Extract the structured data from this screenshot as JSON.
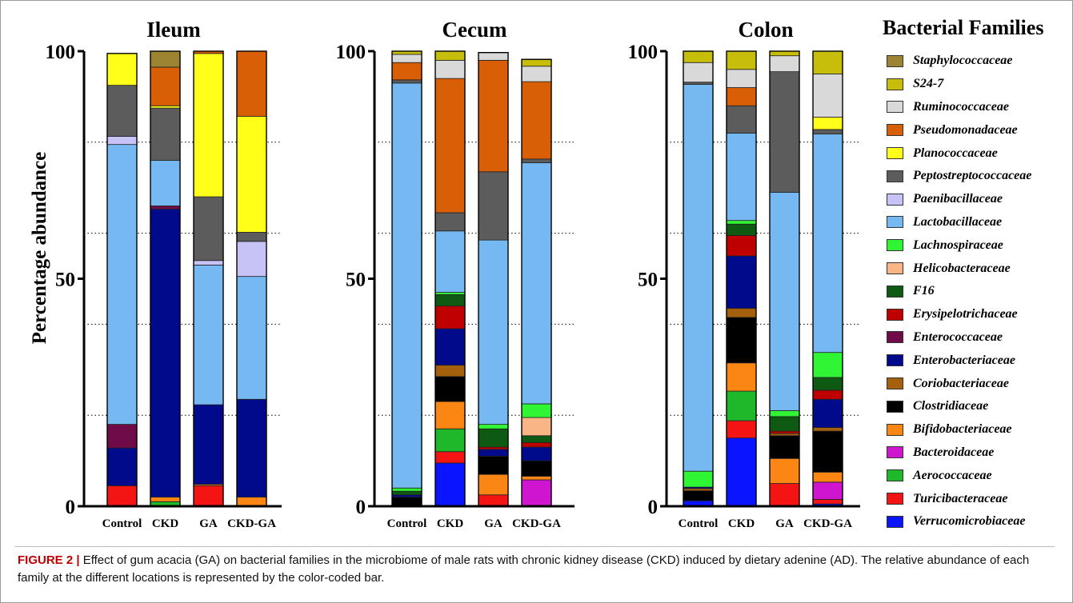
{
  "legend": {
    "title": "Bacterial Families",
    "families": [
      {
        "name": "Staphylococcaceae",
        "color": "#9C8433"
      },
      {
        "name": "S24-7",
        "color": "#C7BE0B"
      },
      {
        "name": "Ruminococcaceae",
        "color": "#D9D9D9"
      },
      {
        "name": "Pseudomonadaceae",
        "color": "#D95F07"
      },
      {
        "name": "Planococcaceae",
        "color": "#FFFF1A"
      },
      {
        "name": "Peptostreptococcaceae",
        "color": "#5C5C5C"
      },
      {
        "name": "Paenibacillaceae",
        "color": "#C8C3F6"
      },
      {
        "name": "Lactobacillaceae",
        "color": "#76B9F2"
      },
      {
        "name": "Lachnospiraceae",
        "color": "#30F534"
      },
      {
        "name": "Helicobacteraceae",
        "color": "#F9B585"
      },
      {
        "name": "F16",
        "color": "#0F5A12"
      },
      {
        "name": "Erysipelotrichaceae",
        "color": "#BF0000"
      },
      {
        "name": "Enterococcaceae",
        "color": "#6E0B48"
      },
      {
        "name": "Enterobacteriaceae",
        "color": "#000A8A"
      },
      {
        "name": "Coriobacteriaceae",
        "color": "#A5600E"
      },
      {
        "name": "Clostridiaceae",
        "color": "#000000"
      },
      {
        "name": "Bifidobacteriaceae",
        "color": "#FB8614"
      },
      {
        "name": "Bacteroidaceae",
        "color": "#CF15CF"
      },
      {
        "name": "Aerococcaceae",
        "color": "#1FB82B"
      },
      {
        "name": "Turicibacteraceae",
        "color": "#F51414"
      },
      {
        "name": "Verrucomicrobiaceae",
        "color": "#0A14FF"
      }
    ]
  },
  "caption": {
    "label": "FIGURE 2 |",
    "text": "Effect of gum acacia (GA) on bacterial families in the microbiome of male rats with chronic kidney disease (CKD) induced by dietary adenine (AD). The relative abundance of each family at the different locations is represented by the color-coded bar."
  },
  "chart_data": [
    {
      "type": "bar",
      "stacked": true,
      "title": "Ileum",
      "ylabel": "Percentage abundance",
      "ylim": [
        0,
        100
      ],
      "yticks": [
        0,
        50,
        100
      ],
      "grid": "dotted horizontal at 20, 40, 60, 80",
      "categories": [
        "Control",
        "CKD",
        "GA",
        "CKD-GA"
      ],
      "series": [
        {
          "name": "Verrucomicrobiaceae",
          "values": [
            0,
            0,
            0,
            0
          ]
        },
        {
          "name": "Turicibacteraceae",
          "values": [
            4.5,
            0,
            4.5,
            0
          ]
        },
        {
          "name": "Aerococcaceae",
          "values": [
            0,
            1.0,
            0,
            0
          ]
        },
        {
          "name": "Bacteroidaceae",
          "values": [
            0,
            0,
            0,
            0
          ]
        },
        {
          "name": "Bifidobacteriaceae",
          "values": [
            0,
            1.0,
            0.3,
            2.0
          ]
        },
        {
          "name": "Clostridiaceae",
          "values": [
            0,
            0,
            0,
            0
          ]
        },
        {
          "name": "Coriobacteriaceae",
          "values": [
            0,
            0,
            0,
            0
          ]
        },
        {
          "name": "Enterobacteriaceae",
          "values": [
            8.3,
            63.3,
            17.5,
            21.5
          ]
        },
        {
          "name": "Enterococcaceae",
          "values": [
            5.2,
            0.7,
            0,
            0
          ]
        },
        {
          "name": "Erysipelotrichaceae",
          "values": [
            0,
            0,
            0,
            0
          ]
        },
        {
          "name": "F16",
          "values": [
            0,
            0,
            0,
            0
          ]
        },
        {
          "name": "Helicobacteraceae",
          "values": [
            0,
            0,
            0,
            0
          ]
        },
        {
          "name": "Lachnospiraceae",
          "values": [
            0,
            0,
            0,
            0
          ]
        },
        {
          "name": "Lactobacillaceae",
          "values": [
            61.5,
            10.0,
            30.7,
            27.0
          ]
        },
        {
          "name": "Paenibacillaceae",
          "values": [
            1.8,
            0,
            1.0,
            7.7
          ]
        },
        {
          "name": "Peptostreptococcaceae",
          "values": [
            11.2,
            11.5,
            14.0,
            2.0
          ]
        },
        {
          "name": "Planococcaceae",
          "values": [
            7.0,
            0.5,
            31.5,
            25.5
          ]
        },
        {
          "name": "Pseudomonadaceae",
          "values": [
            0,
            8.5,
            0.5,
            14.3
          ]
        },
        {
          "name": "Ruminococcaceae",
          "values": [
            0,
            0,
            0,
            0
          ]
        },
        {
          "name": "S24-7",
          "values": [
            0,
            0,
            0,
            0
          ]
        },
        {
          "name": "Staphylococcaceae",
          "values": [
            0,
            3.5,
            0,
            0
          ]
        }
      ]
    },
    {
      "type": "bar",
      "stacked": true,
      "title": "Cecum",
      "ylim": [
        0,
        100
      ],
      "yticks": [
        0,
        50,
        100
      ],
      "grid": "dotted horizontal at 20, 40, 60, 80",
      "categories": [
        "Control",
        "CKD",
        "GA",
        "CKD-GA"
      ],
      "series": [
        {
          "name": "Verrucomicrobiaceae",
          "values": [
            0,
            9.5,
            0,
            0
          ]
        },
        {
          "name": "Turicibacteraceae",
          "values": [
            0,
            2.5,
            2.5,
            0
          ]
        },
        {
          "name": "Aerococcaceae",
          "values": [
            0,
            5.0,
            0,
            0
          ]
        },
        {
          "name": "Bacteroidaceae",
          "values": [
            0,
            0,
            0,
            5.8
          ]
        },
        {
          "name": "Bifidobacteriaceae",
          "values": [
            0,
            6.0,
            4.5,
            0.8
          ]
        },
        {
          "name": "Clostridiaceae",
          "values": [
            2.0,
            5.5,
            4.0,
            3.4
          ]
        },
        {
          "name": "Coriobacteriaceae",
          "values": [
            0,
            2.5,
            0,
            0
          ]
        },
        {
          "name": "Enterobacteriaceae",
          "values": [
            0.5,
            8.0,
            1.5,
            3.0
          ]
        },
        {
          "name": "Enterococcaceae",
          "values": [
            0,
            0,
            0,
            0
          ]
        },
        {
          "name": "Erysipelotrichaceae",
          "values": [
            0,
            5.0,
            0.5,
            1.0
          ]
        },
        {
          "name": "F16",
          "values": [
            0.8,
            2.5,
            4.0,
            1.5
          ]
        },
        {
          "name": "Helicobacteraceae",
          "values": [
            0,
            0,
            0,
            4.0
          ]
        },
        {
          "name": "Lachnospiraceae",
          "values": [
            0.7,
            0.5,
            1.0,
            3.0
          ]
        },
        {
          "name": "Lactobacillaceae",
          "values": [
            89.0,
            13.5,
            40.5,
            53.0
          ]
        },
        {
          "name": "Paenibacillaceae",
          "values": [
            0,
            0,
            0,
            0
          ]
        },
        {
          "name": "Peptostreptococcaceae",
          "values": [
            0.7,
            4.0,
            15.0,
            0.8
          ]
        },
        {
          "name": "Planococcaceae",
          "values": [
            0,
            0,
            0,
            0
          ]
        },
        {
          "name": "Pseudomonadaceae",
          "values": [
            3.8,
            29.5,
            24.5,
            17.0
          ]
        },
        {
          "name": "Ruminococcaceae",
          "values": [
            1.8,
            4.0,
            1.7,
            3.4
          ]
        },
        {
          "name": "S24-7",
          "values": [
            0.7,
            2.0,
            0,
            1.5
          ]
        },
        {
          "name": "Staphylococcaceae",
          "values": [
            0,
            0,
            0,
            0
          ]
        }
      ]
    },
    {
      "type": "bar",
      "stacked": true,
      "title": "Colon",
      "ylim": [
        0,
        100
      ],
      "yticks": [
        0,
        50,
        100
      ],
      "grid": "dotted horizontal at 20, 40, 60, 80",
      "categories": [
        "Control",
        "CKD",
        "GA",
        "CKD-GA"
      ],
      "series": [
        {
          "name": "Verrucomicrobiaceae",
          "values": [
            1.2,
            15.0,
            0,
            0.5
          ]
        },
        {
          "name": "Turicibacteraceae",
          "values": [
            0,
            3.8,
            5.0,
            1.0
          ]
        },
        {
          "name": "Aerococcaceae",
          "values": [
            0,
            6.5,
            0,
            0
          ]
        },
        {
          "name": "Bacteroidaceae",
          "values": [
            0,
            0,
            0,
            3.8
          ]
        },
        {
          "name": "Bifidobacteriaceae",
          "values": [
            0,
            6.2,
            5.5,
            2.2
          ]
        },
        {
          "name": "Clostridiaceae",
          "values": [
            2.2,
            10.0,
            5.0,
            9.0
          ]
        },
        {
          "name": "Coriobacteriaceae",
          "values": [
            0.5,
            2.0,
            0.5,
            0.8
          ]
        },
        {
          "name": "Enterobacteriaceae",
          "values": [
            0.3,
            11.5,
            0,
            6.2
          ]
        },
        {
          "name": "Enterococcaceae",
          "values": [
            0,
            0,
            0,
            0
          ]
        },
        {
          "name": "Erysipelotrichaceae",
          "values": [
            0,
            4.5,
            0.5,
            2.0
          ]
        },
        {
          "name": "F16",
          "values": [
            0,
            2.5,
            3.2,
            2.8
          ]
        },
        {
          "name": "Helicobacteraceae",
          "values": [
            0,
            0,
            0,
            0
          ]
        },
        {
          "name": "Lachnospiraceae",
          "values": [
            3.5,
            0.8,
            1.3,
            5.5
          ]
        },
        {
          "name": "Lactobacillaceae",
          "values": [
            85.0,
            19.2,
            48.0,
            48.0
          ]
        },
        {
          "name": "Paenibacillaceae",
          "values": [
            0,
            0,
            0,
            0
          ]
        },
        {
          "name": "Peptostreptococcaceae",
          "values": [
            0.5,
            6.0,
            26.5,
            1.0
          ]
        },
        {
          "name": "Planococcaceae",
          "values": [
            0,
            0,
            0,
            2.7
          ]
        },
        {
          "name": "Pseudomonadaceae",
          "values": [
            0,
            4.0,
            0,
            0
          ]
        },
        {
          "name": "Ruminococcaceae",
          "values": [
            4.3,
            4.0,
            3.5,
            9.5
          ]
        },
        {
          "name": "S24-7",
          "values": [
            2.5,
            4.0,
            1.0,
            5.0
          ]
        },
        {
          "name": "Staphylococcaceae",
          "values": [
            0,
            0,
            0,
            0
          ]
        }
      ]
    }
  ]
}
